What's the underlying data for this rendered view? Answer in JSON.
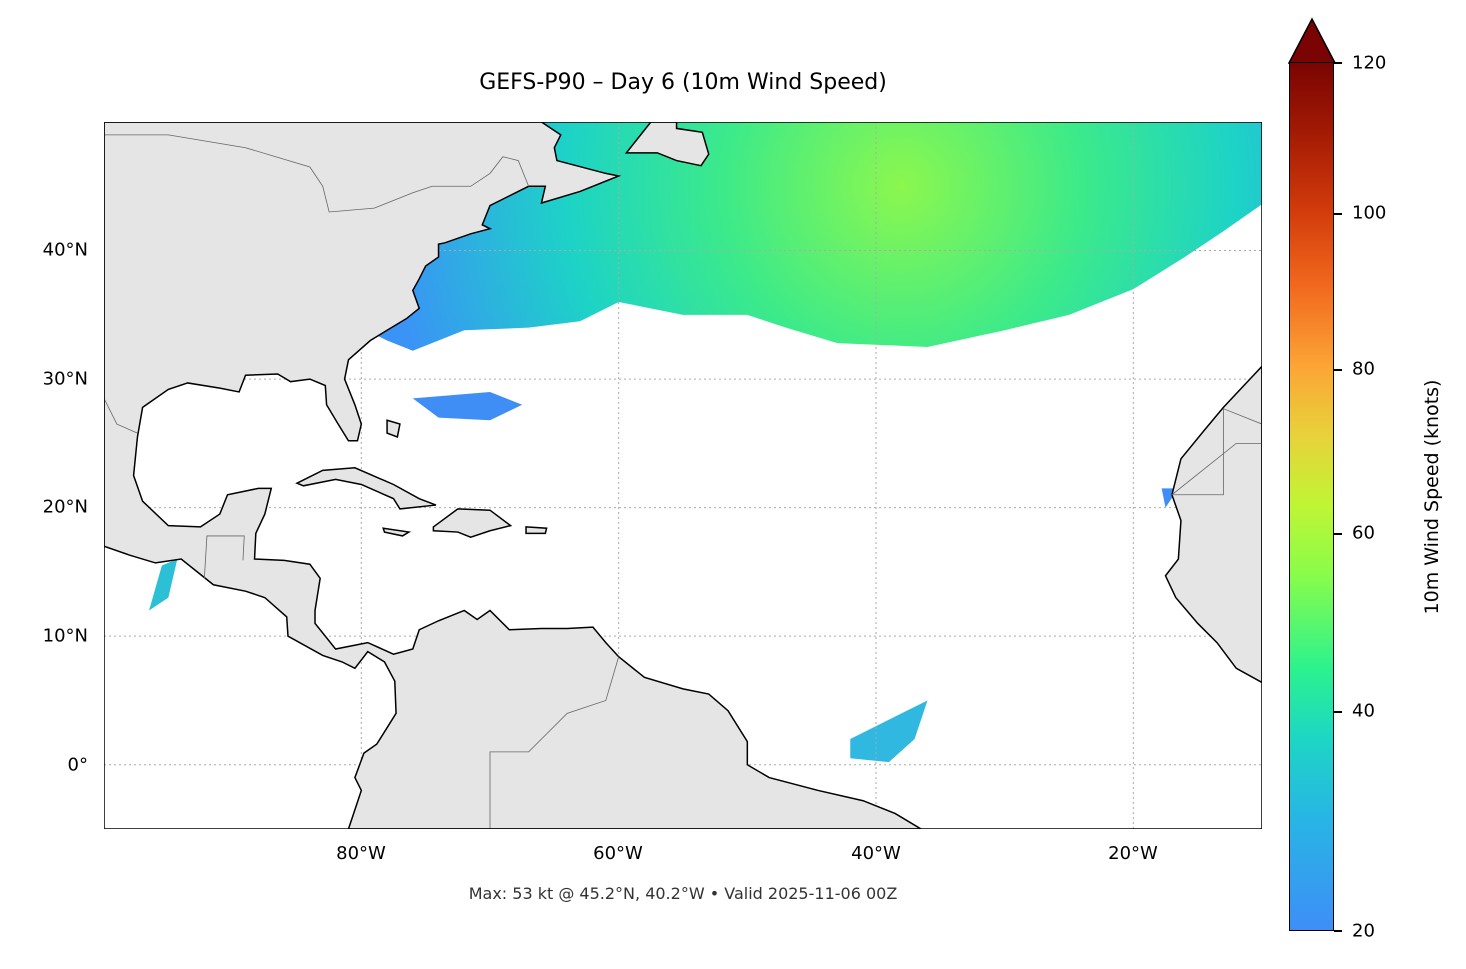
{
  "title": "GEFS-P90 – Day 6 (10m Wind Speed)",
  "footer": "Max: 53 kt @ 45.2°N, 40.2°W • Valid 2025-11-06 00Z",
  "map": {
    "extent_lon": [
      -100,
      -10
    ],
    "extent_lat": [
      -5,
      50
    ],
    "lat_labels": [
      "40°N",
      "30°N",
      "20°N",
      "10°N",
      "0°"
    ],
    "lon_labels": [
      "80°W",
      "60°W",
      "40°W",
      "20°W"
    ],
    "land_color": "#e5e5e5",
    "ocean_color": "#ffffff",
    "gridlines": "dotted"
  },
  "colorbar": {
    "label": "10m Wind Speed (knots)",
    "ticks": [
      "20",
      "40",
      "60",
      "80",
      "100",
      "120"
    ],
    "min": 20,
    "max": 120,
    "extend": "max",
    "colormap": "turbo"
  },
  "max_point": {
    "value_kt": 53,
    "lat": 45.2,
    "lon": -40.2
  }
}
